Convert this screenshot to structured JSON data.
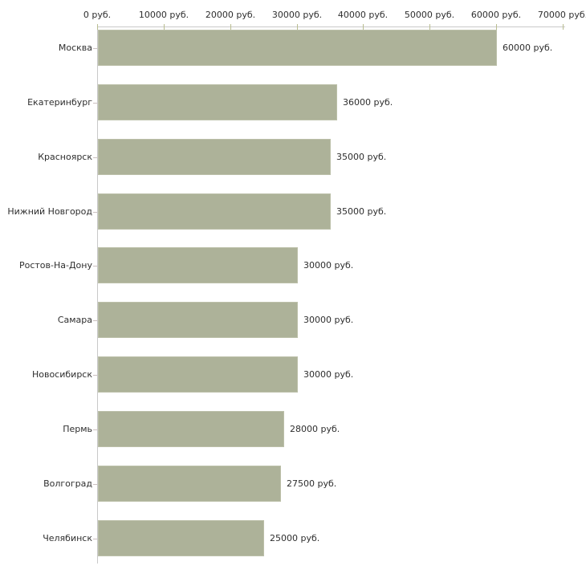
{
  "chart_data": {
    "type": "bar",
    "orientation": "horizontal",
    "title": "",
    "xlabel": "",
    "ylabel": "",
    "xlim": [
      0,
      70000
    ],
    "x_tick_interval": 10000,
    "x_ticks": [
      0,
      10000,
      20000,
      30000,
      40000,
      50000,
      60000,
      70000
    ],
    "x_tick_labels": [
      "0 руб.",
      "10000 руб.",
      "20000 руб.",
      "30000 руб.",
      "40000 руб.",
      "50000 руб.",
      "60000 руб.",
      "70000 руб."
    ],
    "grid": false,
    "legend": "none",
    "categories": [
      "Москва",
      "Екатеринбург",
      "Красноярск",
      "Нижний Новгород",
      "Ростов-На-Дону",
      "Самара",
      "Новосибирск",
      "Пермь",
      "Волгоград",
      "Челябинск"
    ],
    "values": [
      60000,
      36000,
      35000,
      35000,
      30000,
      30000,
      30000,
      28000,
      27500,
      25000
    ],
    "value_labels": [
      "60000 руб.",
      "36000 руб.",
      "35000 руб.",
      "35000 руб.",
      "30000 руб.",
      "30000 руб.",
      "30000 руб.",
      "28000 руб.",
      "27500 руб.",
      "25000 руб."
    ],
    "colors": {
      "bar_fill": "#adb299",
      "bar_border": "#bcc0a9",
      "axis_line": "#c9c9c9",
      "x_tick_mark": "#b9bd90",
      "y_tick_mark": "#cbc0c0",
      "text": "#2e2e2e",
      "background": "#ffffff"
    }
  }
}
